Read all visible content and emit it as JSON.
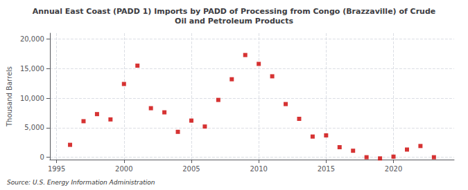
{
  "chart_data": {
    "type": "scatter",
    "title": "Annual East Coast (PADD 1) Imports by PADD of Processing from Congo (Brazzaville) of Crude\nOil and Petroleum Products",
    "ylabel": "Thousand Barrels",
    "source": "Source: U.S. Energy Information Administration",
    "x": [
      1996,
      1997,
      1998,
      1999,
      2000,
      2001,
      2002,
      2003,
      2004,
      2005,
      2006,
      2007,
      2008,
      2009,
      2010,
      2011,
      2012,
      2013,
      2014,
      2015,
      2016,
      2017,
      2018,
      2019,
      2020,
      2021,
      2022,
      2023
    ],
    "values": [
      2100,
      6100,
      7300,
      6400,
      12400,
      15500,
      8300,
      7600,
      4300,
      6200,
      5200,
      9700,
      13200,
      17300,
      15800,
      13700,
      9000,
      6500,
      3500,
      3700,
      1700,
      1100,
      0,
      -200,
      100,
      1300,
      1900,
      0
    ],
    "color": "#cc0000",
    "marker": "square",
    "xlim": [
      1994.5,
      2024.5
    ],
    "xticks": [
      1995,
      2000,
      2005,
      2010,
      2015,
      2020
    ],
    "ylim": [
      -400,
      21000
    ],
    "yticks": [
      0,
      {
        "value": 5000,
        "label": "5,000"
      },
      {
        "value": 10000,
        "label": "10,000"
      },
      {
        "value": 15000,
        "label": "15,000"
      },
      {
        "value": 20000,
        "label": "20,000"
      }
    ],
    "grid": true
  }
}
